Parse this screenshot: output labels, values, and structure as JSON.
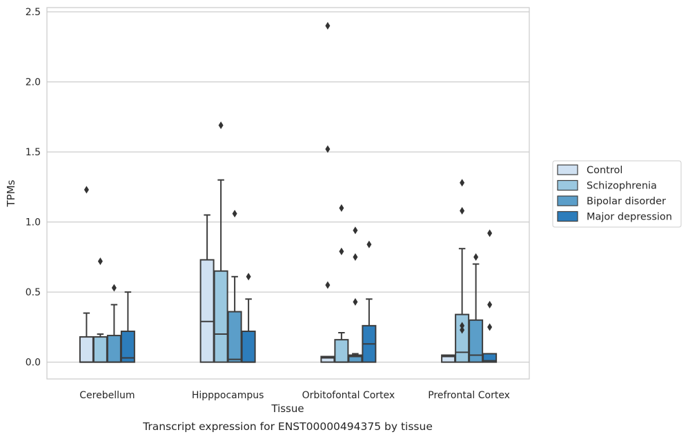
{
  "chart_data": {
    "type": "box",
    "title": "",
    "caption": "Transcript expression for ENST00000494375 by tissue",
    "xlabel": "Tissue",
    "ylabel": "TPMs",
    "ylim": [
      -0.12,
      2.53
    ],
    "yticks": [
      0.0,
      0.5,
      1.0,
      1.5,
      2.0,
      2.5
    ],
    "ytick_labels": [
      "0.0",
      "0.5",
      "1.0",
      "1.5",
      "2.0",
      "2.5"
    ],
    "grid": "horizontal",
    "legend_position": "right",
    "categories": [
      "Cerebellum",
      "Hipppocampus",
      "Orbitofontal Cortex",
      "Prefrontal Cortex"
    ],
    "series": [
      {
        "name": "Control",
        "color": "#d0e1f2",
        "boxes": [
          {
            "whislo": 0.0,
            "q1": 0.0,
            "med": 0.0,
            "q3": 0.18,
            "whishi": 0.35,
            "fliers": [
              1.23
            ]
          },
          {
            "whislo": 0.0,
            "q1": 0.0,
            "med": 0.29,
            "q3": 0.73,
            "whishi": 1.05,
            "fliers": []
          },
          {
            "whislo": 0.0,
            "q1": 0.0,
            "med": 0.03,
            "q3": 0.04,
            "whishi": 0.04,
            "fliers": [
              0.55,
              1.52,
              2.4
            ]
          },
          {
            "whislo": 0.0,
            "q1": 0.0,
            "med": 0.04,
            "q3": 0.05,
            "whishi": 0.05,
            "fliers": []
          }
        ]
      },
      {
        "name": "Schizophrenia",
        "color": "#9ac8e0",
        "boxes": [
          {
            "whislo": 0.0,
            "q1": 0.0,
            "med": 0.0,
            "q3": 0.18,
            "whishi": 0.2,
            "fliers": [
              0.72
            ]
          },
          {
            "whislo": 0.0,
            "q1": 0.0,
            "med": 0.2,
            "q3": 0.65,
            "whishi": 1.3,
            "fliers": [
              1.69
            ]
          },
          {
            "whislo": 0.0,
            "q1": 0.0,
            "med": 0.0,
            "q3": 0.16,
            "whishi": 0.21,
            "fliers": [
              0.79,
              1.1
            ]
          },
          {
            "whislo": 0.0,
            "q1": 0.0,
            "med": 0.07,
            "q3": 0.34,
            "whishi": 0.81,
            "fliers": [
              0.23,
              0.26,
              1.08,
              1.28
            ]
          }
        ]
      },
      {
        "name": "Bipolar disorder",
        "color": "#5b9ec9",
        "boxes": [
          {
            "whislo": 0.0,
            "q1": 0.0,
            "med": 0.0,
            "q3": 0.19,
            "whishi": 0.41,
            "fliers": [
              0.53
            ]
          },
          {
            "whislo": 0.0,
            "q1": 0.0,
            "med": 0.02,
            "q3": 0.36,
            "whishi": 0.61,
            "fliers": [
              1.06
            ]
          },
          {
            "whislo": 0.0,
            "q1": 0.0,
            "med": 0.04,
            "q3": 0.05,
            "whishi": 0.06,
            "fliers": [
              0.43,
              0.75,
              0.94
            ]
          },
          {
            "whislo": 0.0,
            "q1": 0.0,
            "med": 0.05,
            "q3": 0.3,
            "whishi": 0.7,
            "fliers": [
              0.75
            ]
          }
        ]
      },
      {
        "name": "Major depression",
        "color": "#2d7dbb",
        "boxes": [
          {
            "whislo": 0.0,
            "q1": 0.0,
            "med": 0.03,
            "q3": 0.22,
            "whishi": 0.5,
            "fliers": []
          },
          {
            "whislo": 0.0,
            "q1": 0.0,
            "med": 0.0,
            "q3": 0.22,
            "whishi": 0.45,
            "fliers": [
              0.61
            ]
          },
          {
            "whislo": 0.0,
            "q1": 0.0,
            "med": 0.13,
            "q3": 0.26,
            "whishi": 0.45,
            "fliers": [
              0.84
            ]
          },
          {
            "whislo": 0.0,
            "q1": 0.0,
            "med": 0.01,
            "q3": 0.06,
            "whishi": 0.06,
            "fliers": [
              0.25,
              0.41,
              0.92
            ]
          }
        ]
      }
    ]
  }
}
